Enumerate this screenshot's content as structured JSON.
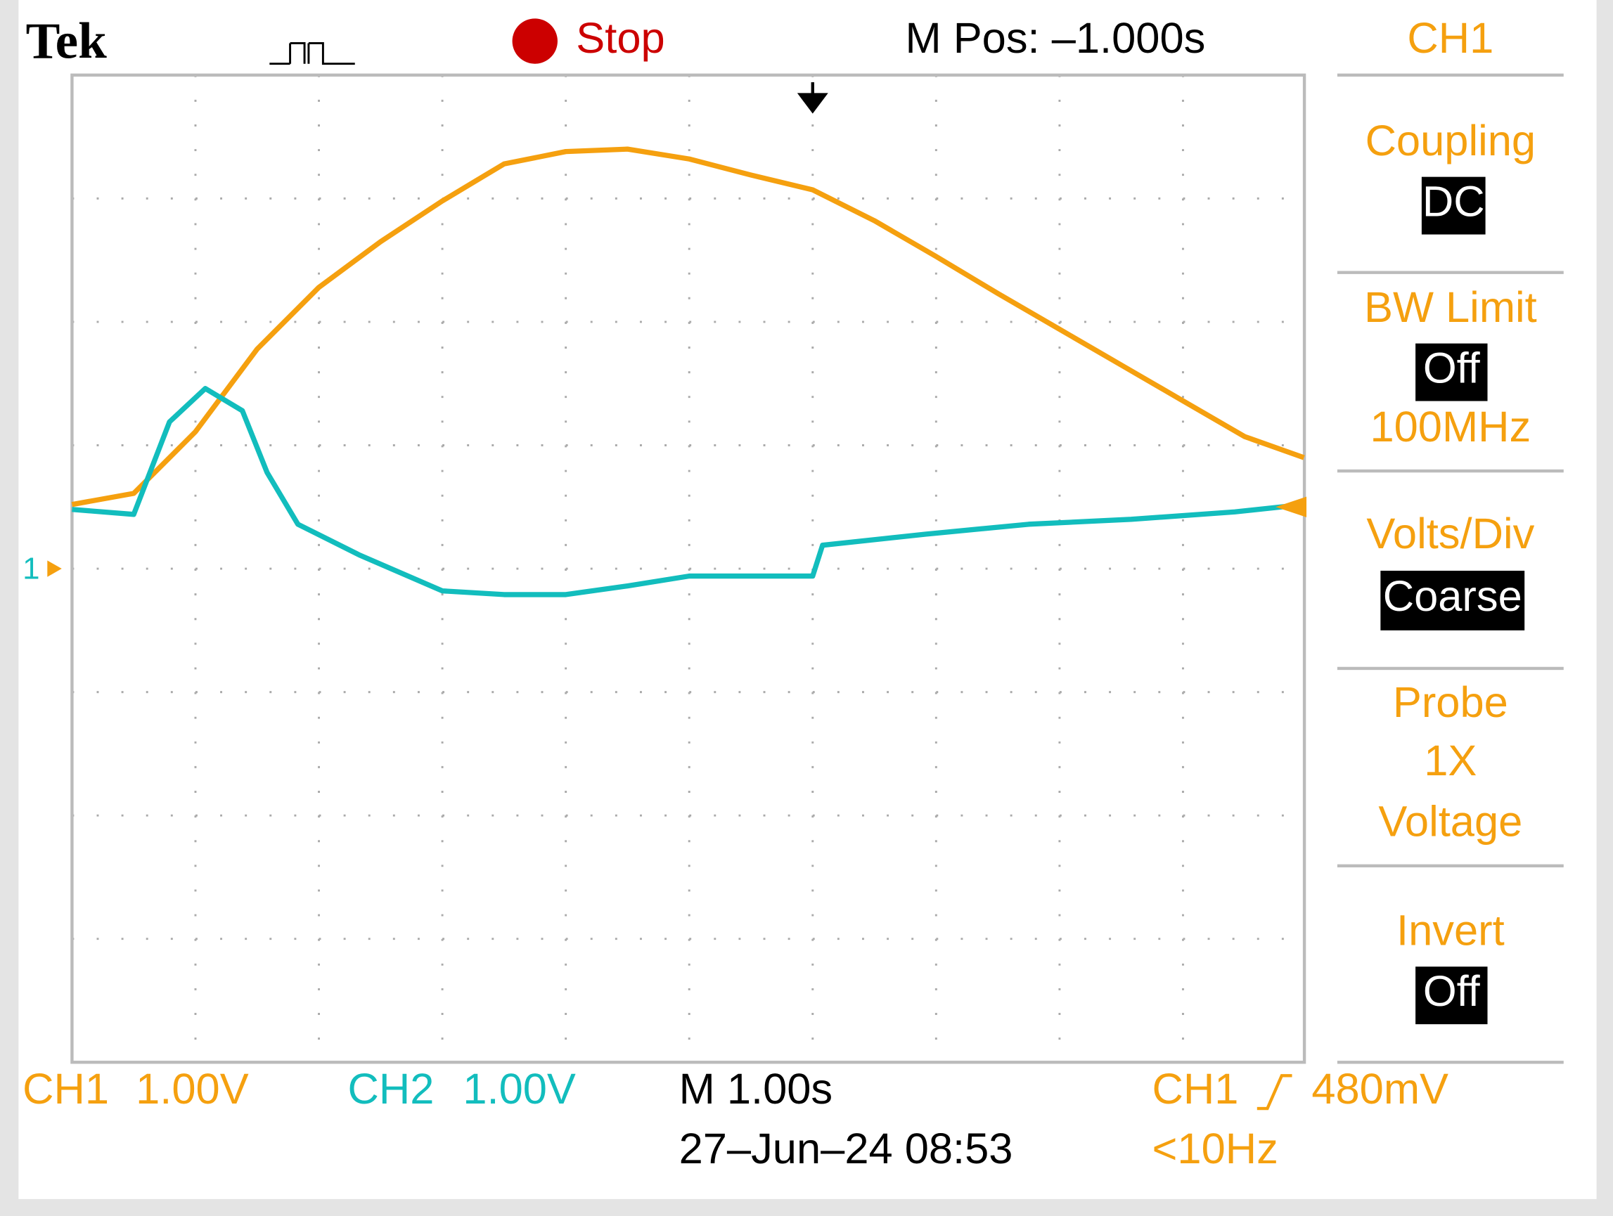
{
  "header": {
    "brand": "Tek",
    "state": "Stop",
    "position": "M Pos: –1.000s"
  },
  "menu": {
    "title": "CH1",
    "coupling": {
      "label": "Coupling",
      "value": "DC"
    },
    "bw_limit": {
      "label": "BW Limit",
      "value": "Off",
      "note": "100MHz"
    },
    "volts_div": {
      "label": "Volts/Div",
      "value": "Coarse"
    },
    "probe": {
      "label": "Probe",
      "value": "1X",
      "note": "Voltage"
    },
    "invert": {
      "label": "Invert",
      "value": "Off"
    }
  },
  "ground_marker": "1",
  "footer": {
    "ch1": {
      "name": "CH1",
      "scale": "1.00V"
    },
    "ch2": {
      "name": "CH2",
      "scale": "1.00V"
    },
    "timebase": "M 1.00s",
    "date": "27–Jun–24 08:53",
    "trigger": {
      "source": "CH1",
      "level": "480mV",
      "frequency": "<10Hz"
    }
  },
  "traces": [
    {
      "name": "CH1",
      "color": "#f5a00f",
      "x": [
        0,
        0.5,
        1,
        1.5,
        2,
        2.5,
        3,
        3.5,
        4,
        4.5,
        5,
        5.5,
        6,
        6.5,
        7,
        7.5,
        8,
        8.5,
        9,
        9.5,
        9.98
      ],
      "y": [
        0.52,
        0.61,
        1.11,
        1.78,
        2.28,
        2.65,
        2.98,
        3.28,
        3.38,
        3.4,
        3.32,
        3.19,
        3.07,
        2.82,
        2.53,
        2.23,
        1.94,
        1.65,
        1.36,
        1.07,
        0.9
      ]
    },
    {
      "name": "CH2",
      "color": "#12bdbd",
      "x": [
        0,
        0.5,
        0.79,
        1.08,
        1.38,
        1.58,
        1.83,
        2.33,
        3,
        3.5,
        4,
        4.5,
        5,
        5.5,
        6,
        6.08,
        6.92,
        7.75,
        8.58,
        9.42,
        9.98
      ],
      "y": [
        0.48,
        0.44,
        1.19,
        1.46,
        1.28,
        0.78,
        0.36,
        0.11,
        -0.18,
        -0.21,
        -0.21,
        -0.14,
        -0.06,
        -0.06,
        -0.06,
        0.19,
        0.28,
        0.36,
        0.4,
        0.46,
        0.52
      ]
    }
  ]
}
